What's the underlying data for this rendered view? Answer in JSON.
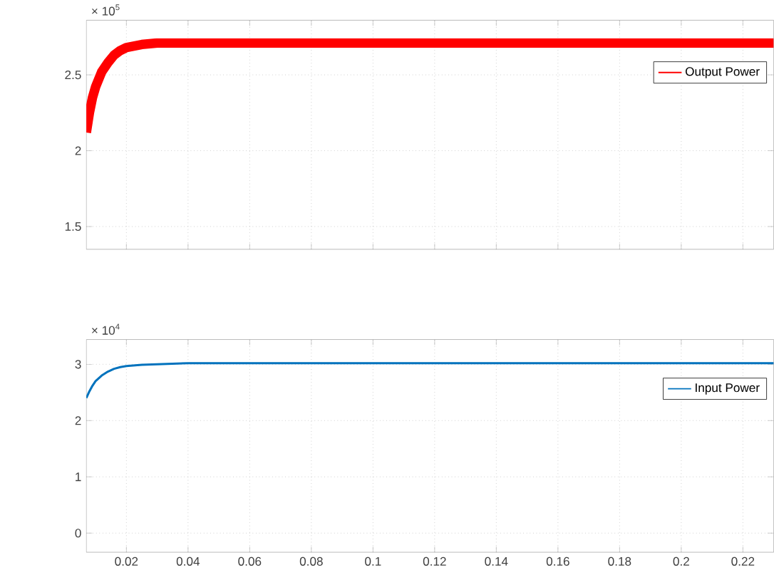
{
  "chart_data": [
    {
      "type": "line",
      "annotations": [
        "× 10$^{5}$"
      ],
      "xlim": [
        0.007,
        0.23
      ],
      "xticks": [
        0.02,
        0.04,
        0.06,
        0.08,
        0.1,
        0.12,
        0.14,
        0.16,
        0.18,
        0.2,
        0.22
      ],
      "ylim": [
        1.35,
        2.86
      ],
      "yticks": [
        1.5,
        2,
        2.5
      ],
      "grid": true,
      "legend": "top right",
      "tick_labels": "y",
      "series": [
        {
          "name": "Output Power",
          "color": "#ff0000",
          "x": [
            0.007,
            0.008,
            0.009,
            0.01,
            0.012,
            0.014,
            0.016,
            0.018,
            0.02,
            0.025,
            0.03,
            0.04,
            0.06,
            0.08,
            0.1,
            0.12,
            0.14,
            0.16,
            0.18,
            0.2,
            0.22,
            0.23
          ],
          "values": [
            2.12,
            2.25,
            2.35,
            2.42,
            2.52,
            2.58,
            2.63,
            2.66,
            2.68,
            2.7,
            2.71,
            2.71,
            2.71,
            2.71,
            2.71,
            2.71,
            2.71,
            2.71,
            2.71,
            2.71,
            2.71,
            2.71
          ]
        }
      ]
    },
    {
      "type": "line",
      "annotations": [
        "× 10$^{4}$"
      ],
      "xlim": [
        0.007,
        0.23
      ],
      "xticks": [
        0.02,
        0.04,
        0.06,
        0.08,
        0.1,
        0.12,
        0.14,
        0.16,
        0.18,
        0.2,
        0.22
      ],
      "ylim": [
        -0.34,
        3.44
      ],
      "yticks": [
        0,
        1,
        2,
        3
      ],
      "grid": true,
      "legend": "top right",
      "series": [
        {
          "name": "Input Power",
          "color": "#0072bd",
          "x": [
            0.007,
            0.008,
            0.009,
            0.01,
            0.012,
            0.014,
            0.016,
            0.018,
            0.02,
            0.025,
            0.03,
            0.04,
            0.06,
            0.08,
            0.1,
            0.12,
            0.14,
            0.16,
            0.18,
            0.2,
            0.22,
            0.23
          ],
          "values": [
            2.4,
            2.52,
            2.62,
            2.7,
            2.8,
            2.87,
            2.92,
            2.95,
            2.97,
            2.99,
            3.0,
            3.02,
            3.02,
            3.02,
            3.02,
            3.02,
            3.02,
            3.02,
            3.02,
            3.02,
            3.02,
            3.02
          ]
        }
      ]
    }
  ]
}
